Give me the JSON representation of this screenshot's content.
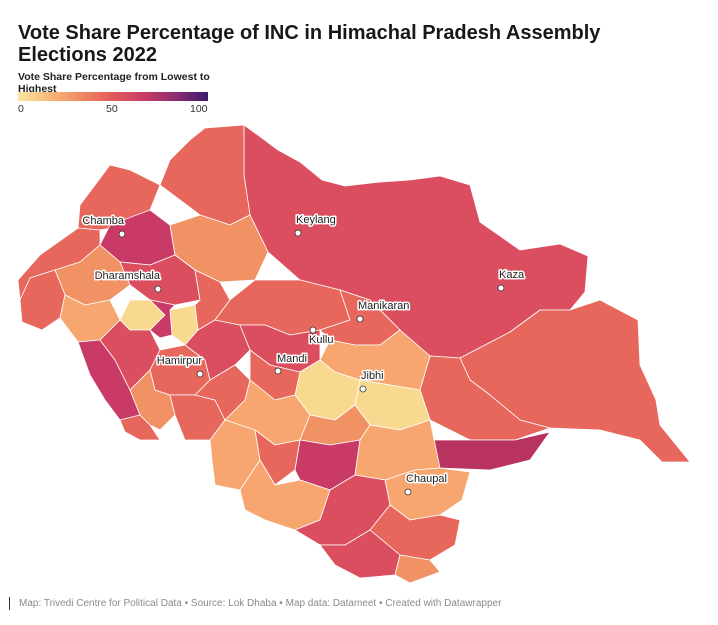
{
  "title": "Vote Share Percentage of INC in Himachal Pradesh Assembly Elections 2022",
  "legend": {
    "title": "Vote Share Percentage from Lowest to Highest",
    "ticks": [
      "0",
      "50",
      "100"
    ],
    "scale_colors": [
      "#fbe6a0",
      "#f8b77a",
      "#f08a62",
      "#e25a5b",
      "#c93a66",
      "#8e2c72",
      "#3d1a6b"
    ]
  },
  "map": {
    "region": "Himachal Pradesh",
    "fill_colors": {
      "light_yellow": "#f8d98f",
      "light_orange": "#f6a66e",
      "orange": "#f09264",
      "salmon": "#e7675c",
      "red": "#db4e60",
      "crimson": "#c93a66",
      "magenta": "#b8335f"
    },
    "cities": [
      {
        "name": "Keylang"
      },
      {
        "name": "Chamba"
      },
      {
        "name": "Kaza"
      },
      {
        "name": "Dharamshala"
      },
      {
        "name": "Manikaran"
      },
      {
        "name": "Kullu"
      },
      {
        "name": "Mandi"
      },
      {
        "name": "Jibhi"
      },
      {
        "name": "Hamirpur"
      },
      {
        "name": "Chaupal"
      }
    ]
  },
  "footer": "Map: Trivedi Centre for Political Data • Source: Lok Dhaba • Map data: Datameet • Created with Datawrapper"
}
